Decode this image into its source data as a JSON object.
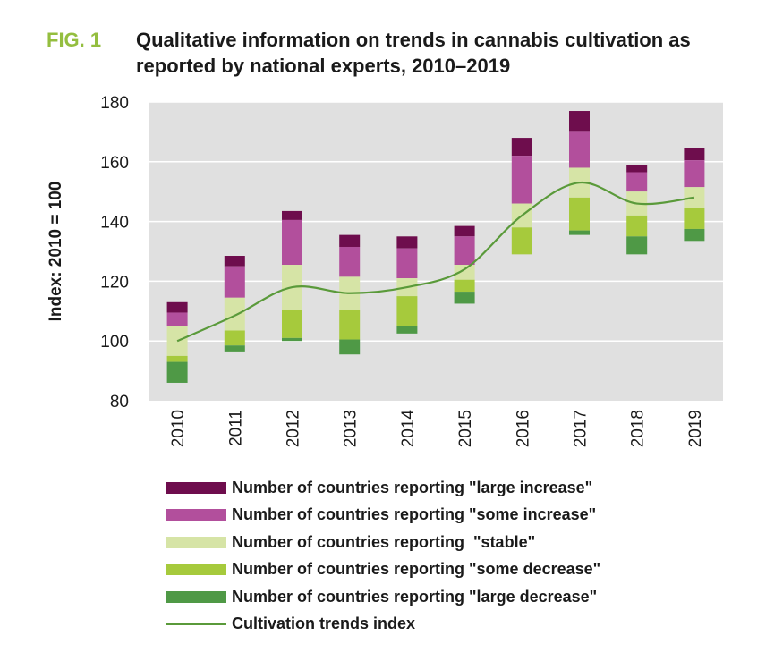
{
  "figure": {
    "label": "FIG. 1",
    "title": "Qualitative information on trends in cannabis cultivation as reported by national experts, 2010–2019"
  },
  "colors": {
    "fig_label": "#94be3f",
    "plot_bg": "#e0e0e0",
    "grid": "#ffffff",
    "large_increase": "#6e0d4d",
    "some_increase": "#b24f9c",
    "stable": "#d6e4a6",
    "some_decrease": "#a6ca3c",
    "large_decrease": "#4f9946",
    "trend_line": "#5a9a3a"
  },
  "chart_data": {
    "type": "bar",
    "subtype": "floating stacked bar with line",
    "ylabel": "Index: 2010 = 100",
    "ylim": [
      80,
      180
    ],
    "yticks": [
      80,
      100,
      120,
      140,
      160,
      180
    ],
    "grid": true,
    "legend_position": "bottom",
    "categories": [
      "2010",
      "2011",
      "2012",
      "2013",
      "2014",
      "2015",
      "2016",
      "2017",
      "2018",
      "2019"
    ],
    "series": [
      {
        "name": "Number of countries reporting \"large increase\"",
        "key": "large_increase",
        "ranges": [
          [
            109.5,
            113
          ],
          [
            125,
            128.5
          ],
          [
            140.5,
            143.5
          ],
          [
            131.5,
            135.5
          ],
          [
            131,
            135
          ],
          [
            135,
            138.5
          ],
          [
            162,
            168
          ],
          [
            170,
            177
          ],
          [
            156.5,
            159
          ],
          [
            160.5,
            164.5
          ]
        ]
      },
      {
        "name": "Number of countries reporting \"some increase\"",
        "key": "some_increase",
        "ranges": [
          [
            105,
            109.5
          ],
          [
            114.5,
            125
          ],
          [
            125.5,
            140.5
          ],
          [
            121.5,
            131.5
          ],
          [
            121,
            131
          ],
          [
            125.5,
            135
          ],
          [
            146,
            162
          ],
          [
            158,
            170
          ],
          [
            150,
            156.5
          ],
          [
            151.5,
            160.5
          ]
        ]
      },
      {
        "name": "Number of countries reporting  \"stable\"",
        "key": "stable",
        "ranges": [
          [
            95,
            105
          ],
          [
            103.5,
            114.5
          ],
          [
            110.5,
            125.5
          ],
          [
            110.5,
            121.5
          ],
          [
            115,
            121
          ],
          [
            120.5,
            125.5
          ],
          [
            138,
            146
          ],
          [
            148,
            158
          ],
          [
            142,
            150
          ],
          [
            144.5,
            151.5
          ]
        ]
      },
      {
        "name": "Number of countries reporting \"some decrease\"",
        "key": "some_decrease",
        "ranges": [
          [
            93,
            95
          ],
          [
            98.5,
            103.5
          ],
          [
            101,
            110.5
          ],
          [
            100.5,
            110.5
          ],
          [
            105,
            115
          ],
          [
            116.5,
            120.5
          ],
          [
            129,
            138
          ],
          [
            137,
            148
          ],
          [
            135,
            142
          ],
          [
            137.5,
            144.5
          ]
        ]
      },
      {
        "name": "Number of countries reporting \"large decrease\"",
        "key": "large_decrease",
        "ranges": [
          [
            86,
            93
          ],
          [
            96.5,
            98.5
          ],
          [
            100,
            101
          ],
          [
            95.5,
            100.5
          ],
          [
            102.5,
            105
          ],
          [
            112.5,
            116.5
          ],
          null,
          [
            135.5,
            137
          ],
          [
            129,
            135
          ],
          [
            133.5,
            137.5
          ]
        ]
      },
      {
        "name": "Cultivation trends index",
        "key": "trend_line",
        "type": "line",
        "values": [
          100,
          108.5,
          118,
          116,
          118,
          124,
          142,
          153,
          146,
          148
        ]
      }
    ]
  }
}
